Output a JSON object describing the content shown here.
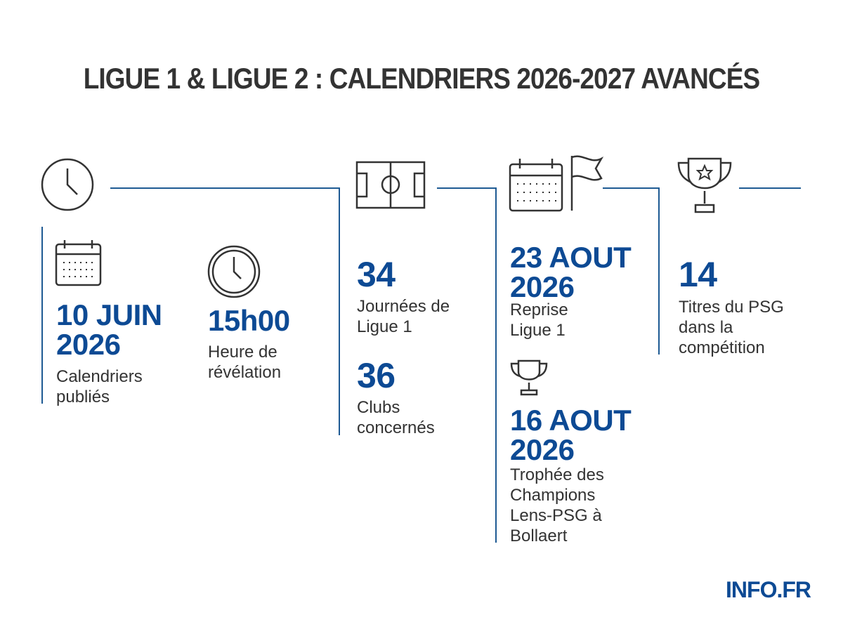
{
  "title": "LIGUE 1 & LIGUE 2 : CALENDRIERS 2026-2027 AVANCÉS",
  "columns": [
    {
      "items": [
        {
          "value": "10 JUIN 2026",
          "label": "Calendriers publiés"
        },
        {
          "value": "15h00",
          "label": "Heure de révélation"
        }
      ]
    },
    {
      "items": [
        {
          "value": 34,
          "label": "Journées de Ligue 1"
        },
        {
          "value": 36,
          "label": "Clubs concernés"
        }
      ]
    },
    {
      "items": [
        {
          "value": "23 AOUT 2026",
          "label": "Reprise Ligue 1"
        },
        {
          "value": "16 AOUT 2026",
          "label": "Trophée des Champions Lens-PSG à Bollaert"
        }
      ]
    },
    {
      "items": [
        {
          "value": 14,
          "label": "Titres du PSG dans la compétition"
        }
      ]
    }
  ],
  "brand": "INFO.FR"
}
